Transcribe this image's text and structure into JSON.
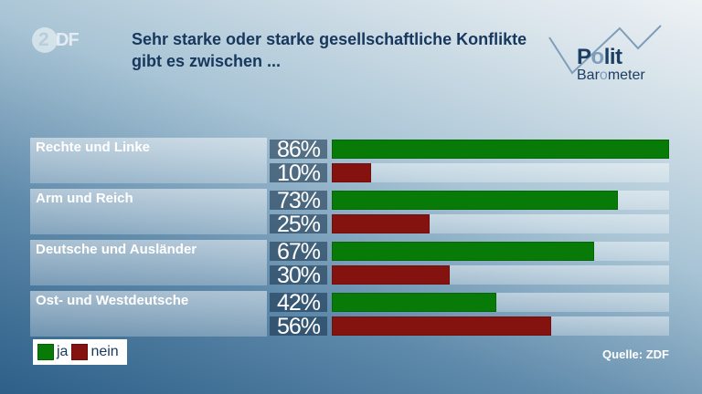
{
  "header": {
    "zdf_logo": {
      "digit": "2",
      "letters": "DF"
    },
    "title_lines": [
      "Sehr starke oder starke gesellschaftliche Konflikte",
      "gibt es zwischen ..."
    ],
    "polit_logo": {
      "word1_parts": [
        "P",
        "o",
        "lit"
      ],
      "word2_parts": [
        "Bar",
        "o",
        "meter"
      ]
    }
  },
  "chart_data": {
    "type": "bar",
    "orientation": "horizontal",
    "title": "Sehr starke oder starke gesellschaftliche Konflikte gibt es zwischen ...",
    "categories": [
      "Rechte und Linke",
      "Arm und Reich",
      "Deutsche und Ausländer",
      "Ost- und Westdeutsche"
    ],
    "series": [
      {
        "name": "ja",
        "color": "#077a07",
        "values": [
          86,
          73,
          67,
          42
        ]
      },
      {
        "name": "nein",
        "color": "#84120f",
        "values": [
          10,
          25,
          30,
          56
        ]
      }
    ],
    "value_suffix": "%",
    "scale_max": 86,
    "xlim": [
      0,
      86
    ],
    "grid": false,
    "legend_position": "bottom-left"
  },
  "legend": {
    "items": [
      {
        "label": "ja",
        "color": "#077a07"
      },
      {
        "label": "nein",
        "color": "#84120f"
      }
    ]
  },
  "footer": {
    "source": "Quelle: ZDF"
  },
  "colors": {
    "title_text": "#17375d",
    "background_top": "#eef2f5",
    "background_bottom": "#2d5f88",
    "pct_cell": "rgba(21,46,70,0.54)"
  }
}
